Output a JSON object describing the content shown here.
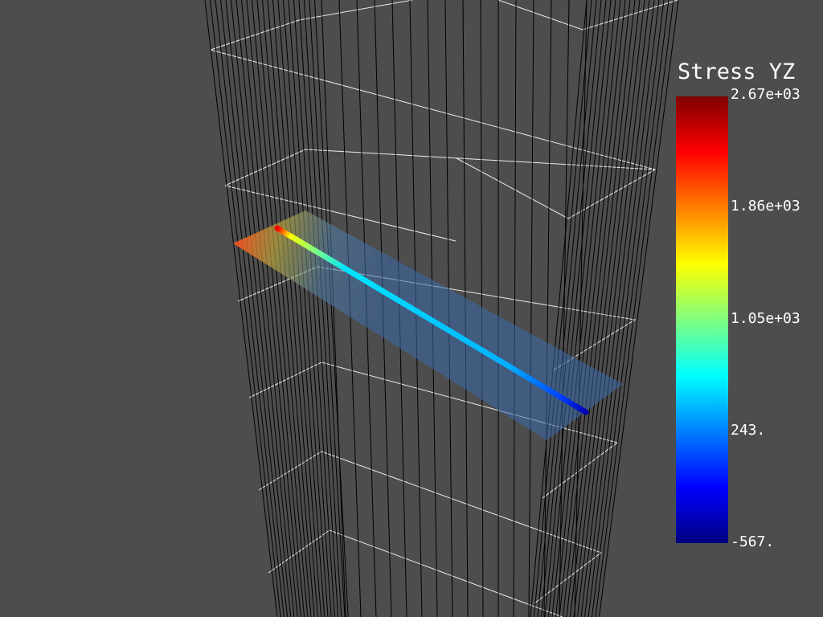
{
  "colorbar": {
    "title": "Stress YZ",
    "ticks": [
      "2.67e+03",
      "1.86e+03",
      "1.05e+03",
      "243.",
      "-567."
    ],
    "colormap": [
      "#00007f",
      "#0000ff",
      "#007fff",
      "#00ffff",
      "#7fff7f",
      "#ffff00",
      "#ff7f00",
      "#ff0000",
      "#7f0000"
    ]
  },
  "scene": {
    "background": "#4d4d4d",
    "edge_color": "#000000",
    "outline_color": "#ffffff"
  }
}
